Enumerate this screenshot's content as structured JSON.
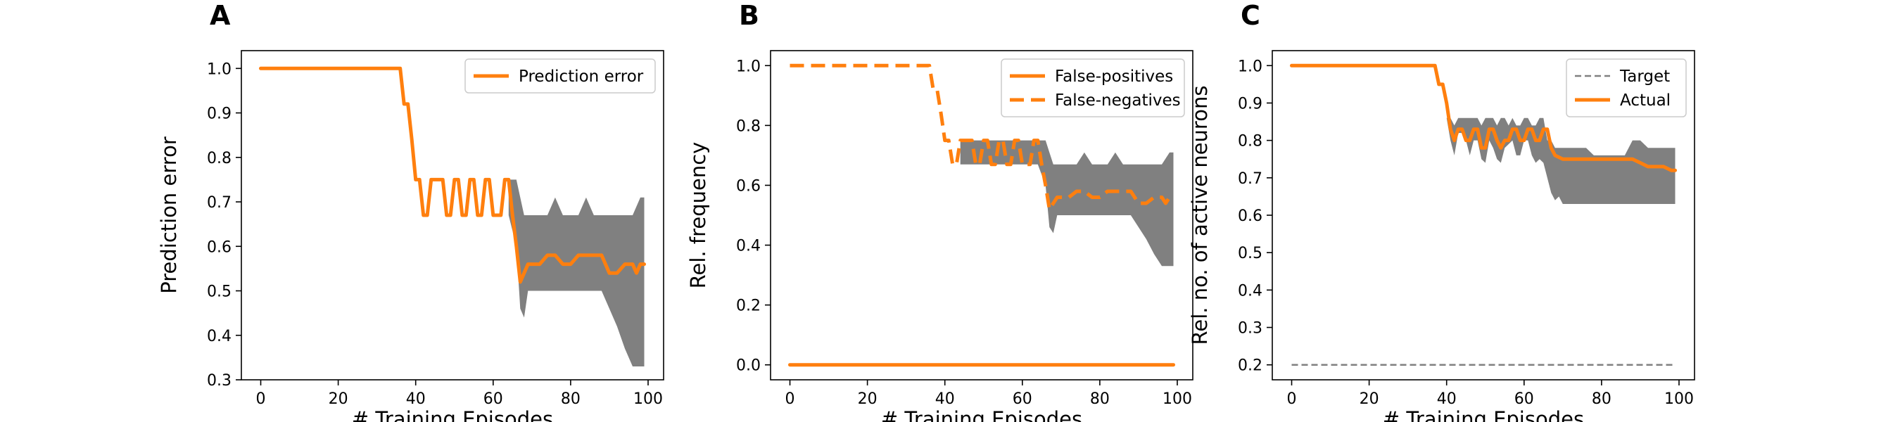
{
  "chart_data": [
    {
      "panel": "A",
      "type": "line",
      "xlabel": "# Training Episodes",
      "ylabel": "Prediction error",
      "xlim": [
        -5,
        104
      ],
      "ylim": [
        0.3,
        1.04
      ],
      "xticks": [
        0,
        20,
        40,
        60,
        80,
        100
      ],
      "yticks": [
        0.3,
        0.4,
        0.5,
        0.6,
        0.7,
        0.8,
        0.9,
        1.0
      ],
      "ytick_labels": [
        "0.3",
        "0.4",
        "0.5",
        "0.6",
        "0.7",
        "0.8",
        "0.9",
        "1.0"
      ],
      "legend": {
        "placement": "top-right",
        "entries": [
          "Prediction error"
        ]
      },
      "series": [
        {
          "name": "Prediction error",
          "style": "solid",
          "color": "#ff7f0e",
          "x": [
            0,
            36,
            37,
            38,
            39,
            40,
            41,
            42,
            43,
            44,
            45,
            46,
            47,
            48,
            49,
            50,
            51,
            52,
            53,
            54,
            55,
            56,
            57,
            58,
            59,
            60,
            61,
            62,
            63,
            64,
            65,
            66,
            67,
            68,
            69,
            70,
            72,
            74,
            76,
            78,
            80,
            82,
            84,
            86,
            88,
            90,
            92,
            94,
            96,
            97,
            98,
            99
          ],
          "y": [
            1.0,
            1.0,
            0.92,
            0.92,
            0.84,
            0.75,
            0.75,
            0.67,
            0.67,
            0.75,
            0.75,
            0.75,
            0.75,
            0.67,
            0.67,
            0.75,
            0.75,
            0.67,
            0.67,
            0.75,
            0.75,
            0.67,
            0.67,
            0.75,
            0.75,
            0.67,
            0.67,
            0.67,
            0.75,
            0.75,
            0.67,
            0.6,
            0.52,
            0.54,
            0.56,
            0.56,
            0.56,
            0.58,
            0.58,
            0.56,
            0.56,
            0.58,
            0.58,
            0.58,
            0.58,
            0.54,
            0.54,
            0.56,
            0.56,
            0.54,
            0.56,
            0.56
          ]
        }
      ],
      "band": {
        "color": "#808080",
        "x": [
          64,
          66,
          67,
          68,
          69,
          70,
          72,
          74,
          76,
          78,
          80,
          82,
          84,
          86,
          88,
          90,
          92,
          94,
          96,
          98,
          99
        ],
        "lower": [
          0.67,
          0.6,
          0.46,
          0.44,
          0.5,
          0.5,
          0.5,
          0.5,
          0.5,
          0.5,
          0.5,
          0.5,
          0.5,
          0.5,
          0.5,
          0.46,
          0.42,
          0.37,
          0.33,
          0.33,
          0.33
        ],
        "upper": [
          0.75,
          0.75,
          0.71,
          0.67,
          0.67,
          0.67,
          0.67,
          0.67,
          0.71,
          0.67,
          0.67,
          0.67,
          0.71,
          0.67,
          0.67,
          0.67,
          0.67,
          0.67,
          0.67,
          0.71,
          0.71
        ]
      }
    },
    {
      "panel": "B",
      "type": "line",
      "xlabel": "# Training Episodes",
      "ylabel": "Rel. frequency",
      "xlim": [
        -5,
        104
      ],
      "ylim": [
        -0.05,
        1.05
      ],
      "xticks": [
        0,
        20,
        40,
        60,
        80,
        100
      ],
      "yticks": [
        0.0,
        0.2,
        0.4,
        0.6,
        0.8,
        1.0
      ],
      "ytick_labels": [
        "0.0",
        "0.2",
        "0.4",
        "0.6",
        "0.8",
        "1.0"
      ],
      "legend": {
        "placement": "top-right",
        "entries": [
          "False-positives",
          "False-negatives"
        ]
      },
      "series": [
        {
          "name": "False-positives",
          "style": "solid",
          "color": "#ff7f0e",
          "x": [
            0,
            99
          ],
          "y": [
            0.0,
            0.0
          ]
        },
        {
          "name": "False-negatives",
          "style": "dashed",
          "color": "#ff7f0e",
          "x": [
            0,
            36,
            37,
            38,
            39,
            40,
            41,
            42,
            43,
            44,
            45,
            46,
            47,
            48,
            49,
            50,
            51,
            52,
            53,
            54,
            55,
            56,
            57,
            58,
            59,
            60,
            61,
            62,
            63,
            64,
            65,
            66,
            67,
            68,
            69,
            70,
            72,
            74,
            76,
            78,
            80,
            82,
            84,
            86,
            88,
            90,
            92,
            94,
            96,
            97,
            98,
            99
          ],
          "y": [
            1.0,
            1.0,
            0.92,
            0.92,
            0.84,
            0.75,
            0.75,
            0.67,
            0.67,
            0.75,
            0.75,
            0.75,
            0.75,
            0.67,
            0.67,
            0.75,
            0.75,
            0.67,
            0.67,
            0.75,
            0.75,
            0.67,
            0.67,
            0.75,
            0.75,
            0.67,
            0.67,
            0.67,
            0.75,
            0.75,
            0.67,
            0.6,
            0.52,
            0.54,
            0.56,
            0.56,
            0.56,
            0.58,
            0.58,
            0.56,
            0.56,
            0.58,
            0.58,
            0.58,
            0.58,
            0.54,
            0.54,
            0.56,
            0.56,
            0.54,
            0.56,
            0.56
          ]
        }
      ],
      "band": {
        "color": "#808080",
        "x": [
          44,
          46,
          48,
          50,
          52,
          54,
          56,
          58,
          60,
          62,
          64,
          66,
          67,
          68,
          69,
          70,
          72,
          74,
          76,
          78,
          80,
          82,
          84,
          86,
          88,
          90,
          92,
          94,
          96,
          98,
          99
        ],
        "lower": [
          0.67,
          0.67,
          0.67,
          0.67,
          0.67,
          0.67,
          0.67,
          0.67,
          0.67,
          0.67,
          0.67,
          0.6,
          0.46,
          0.44,
          0.5,
          0.5,
          0.5,
          0.5,
          0.5,
          0.5,
          0.5,
          0.5,
          0.5,
          0.5,
          0.5,
          0.46,
          0.42,
          0.37,
          0.33,
          0.33,
          0.33
        ],
        "upper": [
          0.75,
          0.75,
          0.75,
          0.75,
          0.75,
          0.75,
          0.75,
          0.75,
          0.75,
          0.75,
          0.75,
          0.75,
          0.71,
          0.67,
          0.67,
          0.67,
          0.67,
          0.67,
          0.71,
          0.67,
          0.67,
          0.67,
          0.71,
          0.67,
          0.67,
          0.67,
          0.67,
          0.67,
          0.67,
          0.71,
          0.71
        ]
      }
    },
    {
      "panel": "C",
      "type": "line",
      "xlabel": "# Training Episodes",
      "ylabel": "Rel. no. of active neurons",
      "xlim": [
        -5,
        104
      ],
      "ylim": [
        0.16,
        1.04
      ],
      "xticks": [
        0,
        20,
        40,
        60,
        80,
        100
      ],
      "yticks": [
        0.2,
        0.3,
        0.4,
        0.5,
        0.6,
        0.7,
        0.8,
        0.9,
        1.0
      ],
      "ytick_labels": [
        "0.2",
        "0.3",
        "0.4",
        "0.5",
        "0.6",
        "0.7",
        "0.8",
        "0.9",
        "1.0"
      ],
      "legend": {
        "placement": "top-right",
        "entries": [
          "Target",
          "Actual"
        ]
      },
      "series": [
        {
          "name": "Target",
          "style": "dashed-thin",
          "color": "#808080",
          "x": [
            0,
            99
          ],
          "y": [
            0.2,
            0.2
          ]
        },
        {
          "name": "Actual",
          "style": "solid",
          "color": "#ff7f0e",
          "x": [
            0,
            37,
            38,
            39,
            40,
            41,
            42,
            43,
            44,
            45,
            46,
            47,
            48,
            49,
            50,
            51,
            52,
            53,
            54,
            55,
            56,
            57,
            58,
            59,
            60,
            61,
            62,
            63,
            64,
            65,
            66,
            67,
            68,
            70,
            72,
            74,
            76,
            78,
            80,
            82,
            84,
            86,
            88,
            90,
            92,
            94,
            96,
            98,
            99
          ],
          "y": [
            1.0,
            1.0,
            0.95,
            0.95,
            0.9,
            0.83,
            0.8,
            0.83,
            0.83,
            0.8,
            0.8,
            0.83,
            0.83,
            0.78,
            0.78,
            0.83,
            0.83,
            0.8,
            0.78,
            0.8,
            0.8,
            0.83,
            0.83,
            0.8,
            0.8,
            0.83,
            0.83,
            0.8,
            0.8,
            0.83,
            0.83,
            0.78,
            0.76,
            0.75,
            0.75,
            0.75,
            0.75,
            0.75,
            0.75,
            0.75,
            0.75,
            0.75,
            0.75,
            0.74,
            0.73,
            0.73,
            0.73,
            0.72,
            0.72
          ]
        }
      ],
      "band": {
        "color": "#808080",
        "x": [
          39,
          40,
          41,
          42,
          43,
          44,
          45,
          46,
          47,
          48,
          49,
          50,
          51,
          52,
          53,
          54,
          55,
          56,
          57,
          58,
          59,
          60,
          61,
          62,
          63,
          64,
          65,
          66,
          67,
          68,
          69,
          70,
          72,
          74,
          76,
          78,
          80,
          82,
          84,
          86,
          88,
          90,
          92,
          94,
          96,
          98,
          99
        ],
        "lower": [
          0.95,
          0.86,
          0.8,
          0.76,
          0.82,
          0.82,
          0.8,
          0.76,
          0.8,
          0.8,
          0.75,
          0.74,
          0.8,
          0.78,
          0.75,
          0.74,
          0.78,
          0.79,
          0.8,
          0.76,
          0.76,
          0.8,
          0.8,
          0.76,
          0.74,
          0.75,
          0.74,
          0.7,
          0.66,
          0.64,
          0.65,
          0.63,
          0.63,
          0.63,
          0.63,
          0.63,
          0.63,
          0.63,
          0.63,
          0.63,
          0.63,
          0.63,
          0.63,
          0.63,
          0.63,
          0.63,
          0.63
        ],
        "upper": [
          0.95,
          0.86,
          0.86,
          0.84,
          0.86,
          0.86,
          0.86,
          0.86,
          0.86,
          0.86,
          0.84,
          0.86,
          0.86,
          0.86,
          0.84,
          0.86,
          0.86,
          0.84,
          0.86,
          0.84,
          0.84,
          0.86,
          0.86,
          0.84,
          0.84,
          0.86,
          0.86,
          0.8,
          0.8,
          0.78,
          0.78,
          0.78,
          0.78,
          0.78,
          0.78,
          0.76,
          0.76,
          0.76,
          0.76,
          0.76,
          0.8,
          0.8,
          0.78,
          0.78,
          0.78,
          0.78,
          0.78
        ]
      }
    }
  ]
}
